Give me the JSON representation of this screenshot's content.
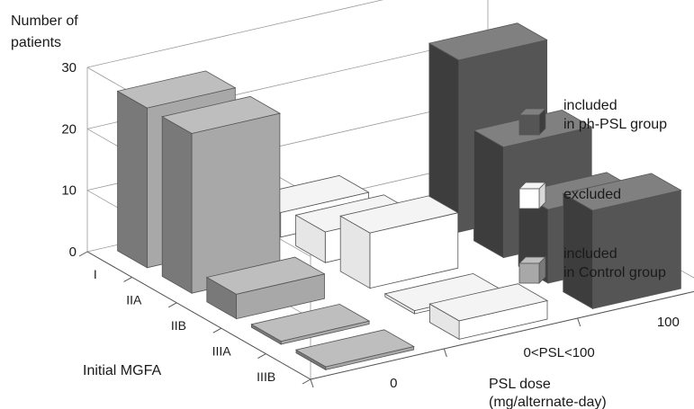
{
  "chart_data": {
    "type": "bar3d",
    "ylabel_line1": "Number of",
    "ylabel_line2": "patients",
    "yticks": [
      "30",
      "20",
      "10",
      "0"
    ],
    "ylim": [
      0,
      30
    ],
    "x_axis_title": "Initial MGFA",
    "x_categories": [
      "I",
      "IIA",
      "IIB",
      "IIIA",
      "IIIB"
    ],
    "z_axis_title_line1": "PSL dose",
    "z_axis_title_line2": "(mg/alternate-day)",
    "z_categories": [
      "0",
      "0<PSL<100",
      "100"
    ],
    "series": [
      {
        "name_line1": "included",
        "name_line2": "in ph-PSL group",
        "color": "#555555",
        "z_index": 2,
        "values": [
          0,
          28,
          18,
          12,
          16
        ]
      },
      {
        "name_line1": "excluded",
        "name_line2": "",
        "color": "#ffffff",
        "z_index": 1,
        "values": [
          4,
          5,
          9,
          0.5,
          3
        ]
      },
      {
        "name_line1": "included",
        "name_line2": "in Control group",
        "color": "#a8a8a8",
        "z_index": 0,
        "values": [
          26,
          26,
          4,
          0.5,
          0.5
        ]
      }
    ]
  }
}
